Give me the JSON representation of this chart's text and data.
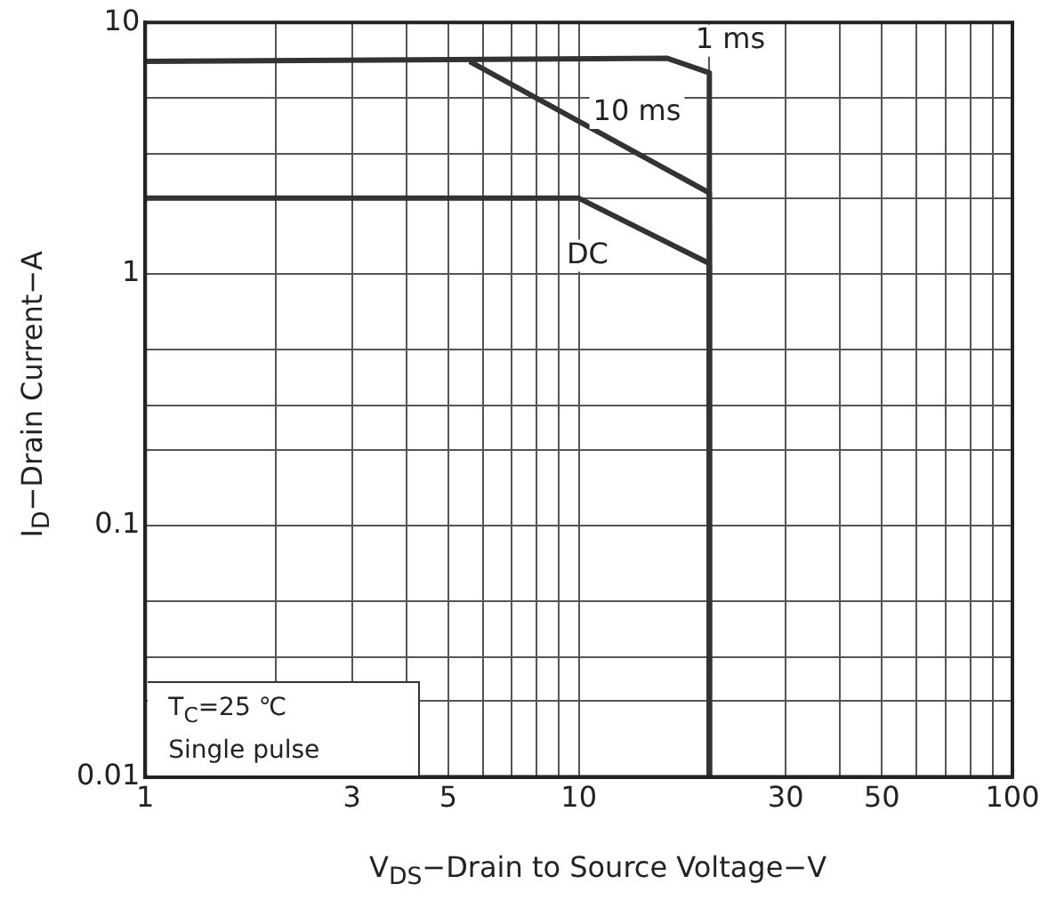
{
  "chart_data": {
    "type": "line",
    "xlabel": "V$_{DS}$−Drain to Source Voltage−V",
    "ylabel": "I$_{D}$−Drain Current−A",
    "log": "xy",
    "grid": true,
    "legend": false,
    "marker": "none",
    "line_style": "solid",
    "xlim": [
      1,
      100
    ],
    "ylim": [
      0.01,
      10
    ],
    "xticks": [
      1,
      {
        "value": 2,
        "label": null
      },
      3,
      {
        "value": 4,
        "label": null
      },
      5,
      {
        "value": 6,
        "label": null
      },
      {
        "value": 7,
        "label": null
      },
      {
        "value": 8,
        "label": null
      },
      {
        "value": 9,
        "label": null
      },
      10,
      {
        "value": 20,
        "label": null
      },
      30,
      {
        "value": 40,
        "label": null
      },
      50,
      {
        "value": 60,
        "label": null
      },
      {
        "value": 70,
        "label": null
      },
      {
        "value": 80,
        "label": null
      },
      {
        "value": 90,
        "label": null
      },
      100
    ],
    "yticks": [
      0.01,
      {
        "value": 0.02,
        "label": null
      },
      {
        "value": 0.03,
        "label": null
      },
      {
        "value": 0.05,
        "label": null
      },
      0.1,
      {
        "value": 0.2,
        "label": null
      },
      {
        "value": 0.3,
        "label": null
      },
      {
        "value": 0.5,
        "label": null
      },
      1,
      {
        "value": 2,
        "label": null
      },
      {
        "value": 3,
        "label": null
      },
      {
        "value": 5,
        "label": null
      },
      10
    ],
    "series": [
      {
        "name": "1 ms",
        "color": "#333333",
        "x": [
          1,
          16,
          20,
          20
        ],
        "values": [
          7,
          7.2,
          6.3,
          0.01
        ]
      },
      {
        "name": "10 ms",
        "color": "#333333",
        "x": [
          5.6,
          20,
          20
        ],
        "values": [
          7,
          2.1,
          0.01
        ]
      },
      {
        "name": "DC",
        "color": "#333333",
        "x": [
          1,
          10,
          20,
          20
        ],
        "values": [
          2,
          2,
          1.1,
          0.01
        ]
      }
    ],
    "annotations": [
      "T$_{C}$=25 ℃",
      "Single pulse"
    ]
  }
}
